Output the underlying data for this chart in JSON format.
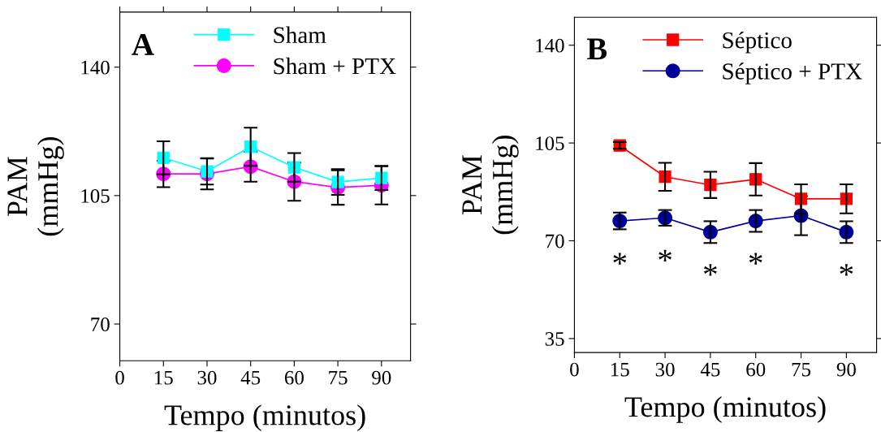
{
  "chart_data": [
    {
      "type": "line",
      "xlabel": "Tempo (minutos)",
      "ylabel": "PAM\n(mmHg)",
      "annotations": [
        "A"
      ],
      "x": [
        15,
        30,
        45,
        60,
        75,
        90
      ],
      "xlim": [
        0,
        100
      ],
      "xticks": [
        0,
        15,
        30,
        45,
        60,
        75,
        90
      ],
      "ylim": [
        60,
        155
      ],
      "yticks": [
        70,
        105,
        140
      ],
      "grid": false,
      "legend": "top right",
      "series": [
        {
          "name": "Sham",
          "color": "#00ffff",
          "marker": "square",
          "values": [
            115.3,
            111.6,
            118.3,
            112.7,
            108.7,
            109.8
          ],
          "errors": [
            4.5,
            3.6,
            5.2,
            3.9,
            3.5,
            3.3
          ]
        },
        {
          "name": "Sham + PTX",
          "color": "#ff00ff",
          "marker": "circle",
          "values": [
            110.9,
            110.9,
            112.9,
            108.8,
            107.2,
            107.8
          ],
          "errors": [
            3.6,
            4.2,
            4.1,
            5.2,
            4.7,
            5.2
          ]
        }
      ]
    },
    {
      "type": "line",
      "xlabel": "Tempo (minutos)",
      "ylabel": "PAM\n(mmHg)",
      "annotations": [
        "B",
        {
          "text": "*",
          "x": 15,
          "y": 77.1
        },
        {
          "text": "*",
          "x": 30,
          "y": 78.2
        },
        {
          "text": "*",
          "x": 45,
          "y": 73.1
        },
        {
          "text": "*",
          "x": 60,
          "y": 77.1
        },
        {
          "text": "*",
          "x": 90,
          "y": 73.1
        }
      ],
      "x": [
        15,
        30,
        45,
        60,
        75,
        90
      ],
      "xlim": [
        0,
        100
      ],
      "xticks": [
        0,
        15,
        30,
        45,
        60,
        75,
        90
      ],
      "ylim": [
        30,
        150
      ],
      "yticks": [
        35,
        70,
        105,
        140
      ],
      "grid": false,
      "legend": "top right",
      "series": [
        {
          "name": "Séptico",
          "color": "#ff0000",
          "marker": "square",
          "values": [
            104.1,
            92.9,
            90.0,
            92.0,
            85.0,
            85.0
          ],
          "errors": [
            1.2,
            5.0,
            4.7,
            5.8,
            5.2,
            5.2
          ]
        },
        {
          "name": "Séptico + PTX",
          "color": "#000099",
          "marker": "circle",
          "values": [
            77.1,
            78.2,
            73.1,
            77.1,
            79.0,
            73.1
          ],
          "errors": [
            3.0,
            2.8,
            3.9,
            3.9,
            7.0,
            3.9
          ]
        }
      ]
    }
  ]
}
